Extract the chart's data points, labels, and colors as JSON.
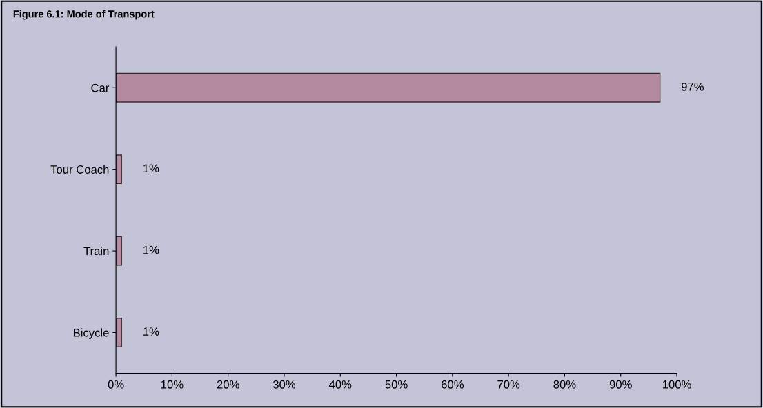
{
  "chart_data": {
    "type": "bar",
    "orientation": "horizontal",
    "title": "Figure 6.1: Mode of Transport",
    "categories": [
      "Car",
      "Tour Coach",
      "Train",
      "Bicycle"
    ],
    "values": [
      97,
      1,
      1,
      1
    ],
    "value_labels": [
      "97%",
      "1%",
      "1%",
      "1%"
    ],
    "color": "#b48aa0",
    "xlim": [
      0,
      100
    ],
    "xticks": [
      {
        "value": 0,
        "label": "0%"
      },
      {
        "value": 10,
        "label": "10%"
      },
      {
        "value": 20,
        "label": "20%"
      },
      {
        "value": 30,
        "label": "30%"
      },
      {
        "value": 40,
        "label": "40%"
      },
      {
        "value": 50,
        "label": "50%"
      },
      {
        "value": 60,
        "label": "60%"
      },
      {
        "value": 70,
        "label": "70%"
      },
      {
        "value": 80,
        "label": "80%"
      },
      {
        "value": 90,
        "label": "90%"
      },
      {
        "value": 100,
        "label": "100%"
      }
    ],
    "grid": false,
    "legend": false
  }
}
